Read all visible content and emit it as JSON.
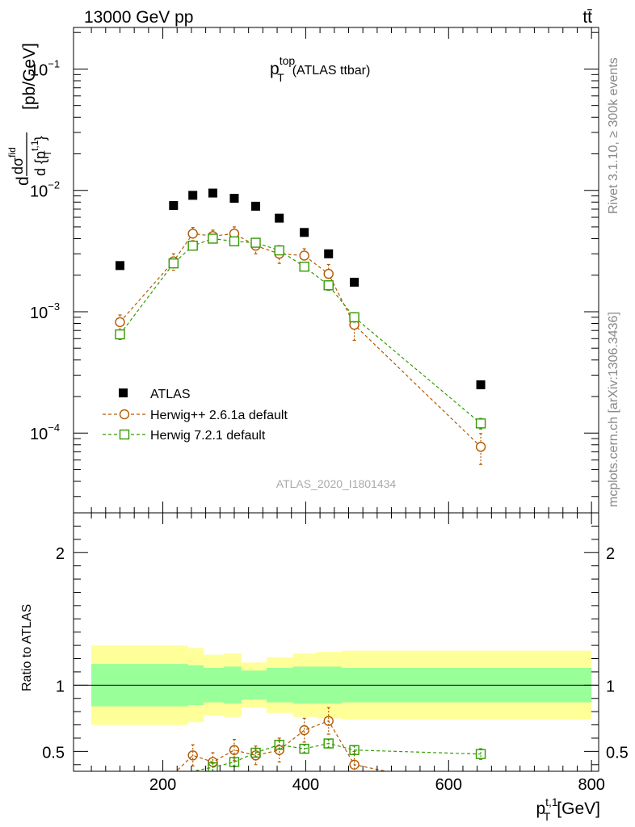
{
  "header": {
    "energy": "13000 GeV pp",
    "process": "tt̄"
  },
  "side": {
    "rivet": "Rivet 3.1.10, ≥ 300k events",
    "mcplots": "mcplots.cern.ch [arXiv:1306.3436]"
  },
  "chart_data": [
    {
      "type": "scatter",
      "title_main": "p",
      "title_sup": "top",
      "title_sub": "T",
      "title_rest": "(ATLAS ttbar)",
      "analysis_id": "ATLAS_2020_I1801434",
      "ylabel_num": "dσ",
      "ylabel_num_sup": "fid",
      "ylabel_den": "d {p",
      "ylabel_den_sup": "t,1",
      "ylabel_den_sub": "T",
      "ylabel_den_close": "}",
      "ylabel_unit": "[pb/GeV]",
      "yscale": "log",
      "ylim": [
        2.2e-05,
        0.22
      ],
      "xlim": [
        75,
        810
      ],
      "yticks": [
        {
          "value": 0.1,
          "base": "10",
          "exp": "−1"
        },
        {
          "value": 0.01,
          "base": "10",
          "exp": "−2"
        },
        {
          "value": 0.001,
          "base": "10",
          "exp": "−3"
        },
        {
          "value": 0.0001,
          "base": "10",
          "exp": "−4"
        }
      ],
      "legend_position": "bottom-left",
      "series": [
        {
          "name": "ATLAS",
          "color": "#000000",
          "marker": "square-filled",
          "x": [
            140,
            215,
            242,
            270,
            300,
            330,
            363,
            398,
            432,
            468,
            645
          ],
          "y": [
            0.0024,
            0.0075,
            0.0091,
            0.0095,
            0.0086,
            0.0074,
            0.0059,
            0.0045,
            0.003,
            0.00175,
            0.00025
          ],
          "err": [
            0,
            0,
            0,
            0,
            0,
            0,
            0,
            0,
            0,
            0,
            0
          ]
        },
        {
          "name": "Herwig++ 2.6.1a default",
          "color": "#b35900",
          "marker": "circle-open",
          "dashed": true,
          "x": [
            140,
            215,
            242,
            270,
            300,
            330,
            363,
            398,
            432,
            468,
            645
          ],
          "y": [
            0.00082,
            0.0026,
            0.0044,
            0.0042,
            0.0044,
            0.0035,
            0.003,
            0.0029,
            0.00205,
            0.00078,
            7.7e-05
          ],
          "err": [
            0.00012,
            0.0004,
            0.00055,
            0.0005,
            0.0006,
            0.0005,
            0.0005,
            0.0004,
            0.0004,
            0.0002,
            2.2e-05
          ]
        },
        {
          "name": "Herwig 7.2.1 default",
          "color": "#339a00",
          "marker": "square-open",
          "dashed": true,
          "x": [
            140,
            215,
            242,
            270,
            300,
            330,
            363,
            398,
            432,
            468,
            645
          ],
          "y": [
            0.00065,
            0.0025,
            0.0035,
            0.004,
            0.0038,
            0.0037,
            0.0032,
            0.00235,
            0.00165,
            0.0009,
            0.00012
          ],
          "err": [
            6e-05,
            0.0002,
            0.00025,
            0.00025,
            0.00025,
            0.0002,
            0.0002,
            0.00015,
            0.00015,
            8e-05,
            1.2e-05
          ]
        }
      ]
    },
    {
      "type": "scatter",
      "ylabel": "Ratio to ATLAS",
      "xlabel_main": "p",
      "xlabel_sup": "t,1",
      "xlabel_sub": "T",
      "xlabel_unit": "[GeV]",
      "xlim": [
        75,
        810
      ],
      "ylim": [
        0.35,
        2.3
      ],
      "xticks": [
        200,
        400,
        600,
        800
      ],
      "yticks": [
        0.5,
        1,
        2
      ],
      "reference": 1,
      "bands": {
        "edges": [
          100,
          207,
          235,
          257,
          285,
          310,
          345,
          382,
          415,
          450,
          800
        ],
        "inner_lo": [
          0.84,
          0.84,
          0.85,
          0.87,
          0.86,
          0.89,
          0.87,
          0.86,
          0.86,
          0.87
        ],
        "inner_hi": [
          1.16,
          1.16,
          1.15,
          1.13,
          1.14,
          1.11,
          1.13,
          1.14,
          1.14,
          1.13
        ],
        "outer_lo": [
          0.7,
          0.7,
          0.72,
          0.77,
          0.76,
          0.83,
          0.79,
          0.76,
          0.75,
          0.74
        ],
        "outer_hi": [
          1.3,
          1.3,
          1.28,
          1.23,
          1.24,
          1.17,
          1.21,
          1.24,
          1.25,
          1.26
        ]
      },
      "series": [
        {
          "name": "Herwig++ 2.6.1a default",
          "color": "#b35900",
          "marker": "circle-open",
          "dashed": true,
          "x": [
            215,
            242,
            270,
            300,
            330,
            363,
            398,
            432,
            468,
            530
          ],
          "y": [
            0.33,
            0.47,
            0.42,
            0.51,
            0.47,
            0.51,
            0.66,
            0.73,
            0.4,
            0.33
          ],
          "err": [
            0.05,
            0.08,
            0.07,
            0.08,
            0.07,
            0.09,
            0.09,
            0.1,
            0.1,
            0.05
          ],
          "marker_visible": [
            false,
            true,
            true,
            true,
            true,
            true,
            true,
            true,
            true,
            false
          ]
        },
        {
          "name": "Herwig 7.2.1 default",
          "color": "#339a00",
          "marker": "square-open",
          "dashed": true,
          "x": [
            215,
            242,
            270,
            300,
            330,
            363,
            398,
            432,
            468,
            645
          ],
          "y": [
            0.33,
            0.35,
            0.38,
            0.42,
            0.49,
            0.55,
            0.52,
            0.56,
            0.51,
            0.48
          ],
          "err": [
            0.03,
            0.03,
            0.03,
            0.03,
            0.03,
            0.03,
            0.03,
            0.03,
            0.03,
            0.04
          ],
          "marker_visible": [
            false,
            false,
            true,
            true,
            true,
            true,
            true,
            true,
            true,
            true
          ]
        }
      ]
    }
  ]
}
